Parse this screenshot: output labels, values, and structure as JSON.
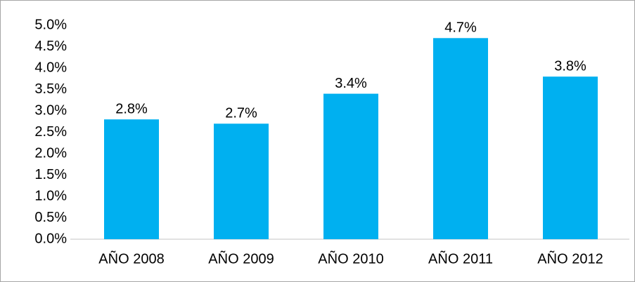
{
  "chart_data": {
    "type": "bar",
    "categories": [
      "AÑO 2008",
      "AÑO 2009",
      "AÑO 2010",
      "AÑO 2011",
      "AÑO 2012"
    ],
    "values": [
      2.8,
      2.7,
      3.4,
      4.7,
      3.8
    ],
    "value_labels": [
      "2.8%",
      "2.7%",
      "3.4%",
      "4.7%",
      "3.8%"
    ],
    "color": "#00b0f0",
    "ylim": [
      0,
      5
    ],
    "yticks": [
      {
        "value": 0,
        "label": "0.0%"
      },
      {
        "value": 0.5,
        "label": "0.5%"
      },
      {
        "value": 1,
        "label": "1.0%"
      },
      {
        "value": 1.5,
        "label": "1.5%"
      },
      {
        "value": 2,
        "label": "2.0%"
      },
      {
        "value": 2.5,
        "label": "2.5%"
      },
      {
        "value": 3,
        "label": "3.0%"
      },
      {
        "value": 3.5,
        "label": "3.5%"
      },
      {
        "value": 4,
        "label": "4.0%"
      },
      {
        "value": 4.5,
        "label": "4.5%"
      },
      {
        "value": 5,
        "label": "5.0%"
      }
    ],
    "grid": false
  }
}
